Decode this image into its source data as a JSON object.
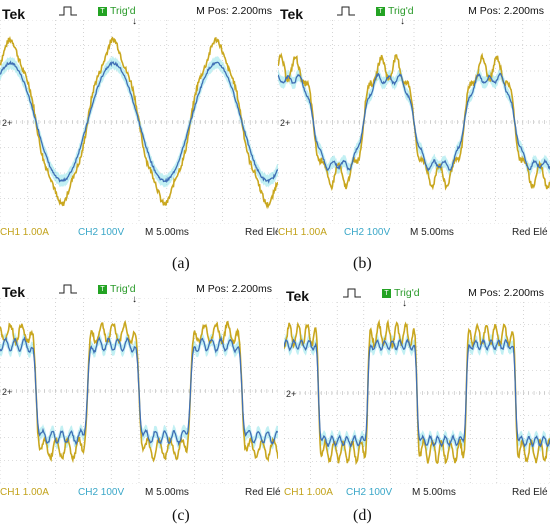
{
  "header": {
    "brand": "Tek",
    "trigger_badge": "T",
    "trigger_status": "Trig'd",
    "m_pos": "M Pos: 2.200ms",
    "trigger_arrow": "↓"
  },
  "footer": {
    "ch1": "CH1  1.00A",
    "ch2": "CH2  100V",
    "time_div": "M 5.00ms",
    "trigger_src": "Red Elé"
  },
  "marker": "2+",
  "colors": {
    "ch1_trace": "#c9a71f",
    "ch2_trace": "#3f6fb5",
    "ch2_band": "#8fe3ea",
    "grid": "#b8b8b8"
  },
  "captions": [
    "(a)",
    "(b)",
    "(c)",
    "(d)"
  ]
}
